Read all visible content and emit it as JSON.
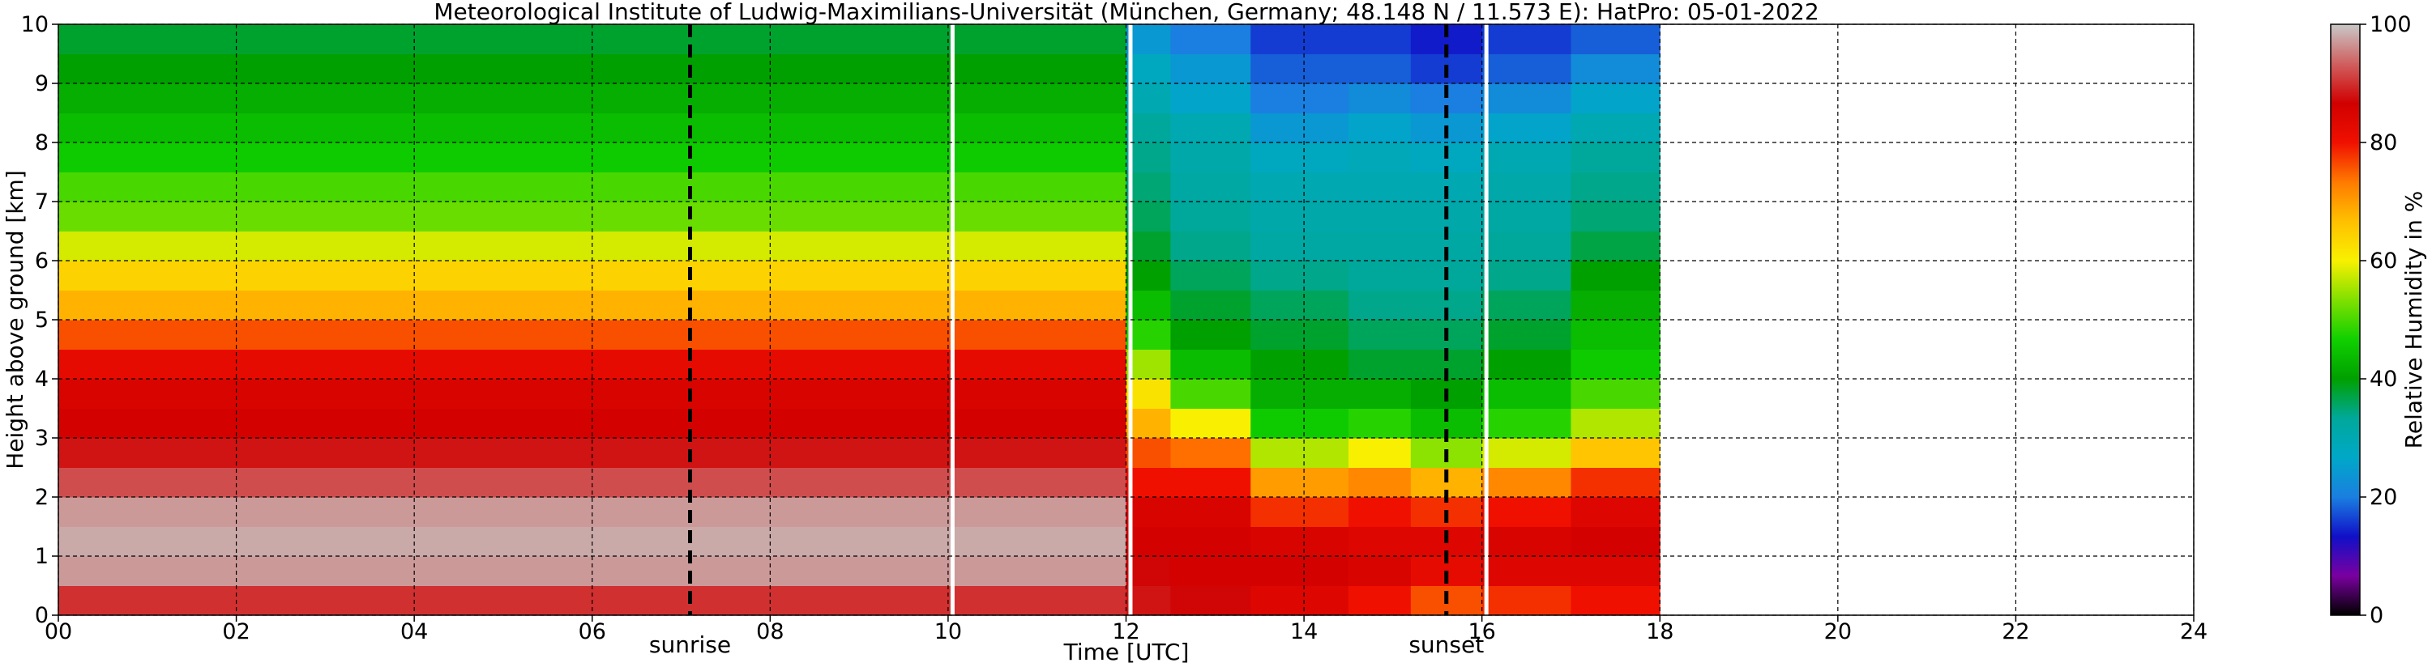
{
  "chart_data": {
    "type": "heatmap",
    "title": "Meteorological Institute of Ludwig-Maximilians-Universität (München, Germany; 48.148 N / 11.573 E):    HatPro: 05-01-2022",
    "xlabel": "Time [UTC]",
    "ylabel": "Height above ground [km]",
    "xlim": [
      0,
      24
    ],
    "ylim": [
      0,
      10
    ],
    "x_ticks": [
      "00",
      "02",
      "04",
      "06",
      "08",
      "10",
      "12",
      "14",
      "16",
      "18",
      "20",
      "22",
      "24"
    ],
    "y_ticks": [
      "0",
      "1",
      "2",
      "3",
      "4",
      "5",
      "6",
      "7",
      "8",
      "9",
      "10"
    ],
    "grid": true,
    "data_end_hour": 18,
    "colorbar": {
      "label": "Relative Humidity in %",
      "range": [
        0,
        100
      ],
      "ticks": [
        "0",
        "20",
        "40",
        "60",
        "80",
        "100"
      ],
      "colors": [
        "#000000",
        "#7a00a0",
        "#1010c8",
        "#1a7fe0",
        "#00a8c8",
        "#00a89a",
        "#00a000",
        "#10d000",
        "#80e000",
        "#f8f000",
        "#ffc000",
        "#ff7a00",
        "#f01000",
        "#d00000",
        "#d06060",
        "#c8c8c8"
      ]
    },
    "annotations": [
      {
        "text": "sunrise",
        "x": 7.1
      },
      {
        "text": "sunset",
        "x": 15.6
      }
    ],
    "data_gaps_hours": [
      10.05,
      12.05,
      16.05
    ],
    "profiles": {
      "heights_km": [
        0.25,
        0.75,
        1.25,
        1.75,
        2.25,
        2.75,
        3.25,
        3.75,
        4.25,
        4.75,
        5.25,
        5.75,
        6.25,
        6.75,
        7.25,
        7.75,
        8.25,
        8.75,
        9.25,
        9.75
      ],
      "segments": [
        {
          "t_start": 0,
          "t_end": 12,
          "rh": [
            90,
            97,
            98,
            97,
            92,
            88,
            86,
            85,
            82,
            76,
            68,
            64,
            58,
            52,
            50,
            46,
            44,
            42,
            40,
            38
          ]
        },
        {
          "t_start": 12,
          "t_end": 12.5,
          "rh": [
            88,
            87,
            86,
            85,
            80,
            76,
            68,
            62,
            55,
            48,
            44,
            40,
            38,
            36,
            35,
            34,
            33,
            30,
            28,
            24
          ]
        },
        {
          "t_start": 12.5,
          "t_end": 13.4,
          "rh": [
            87,
            86,
            86,
            85,
            80,
            74,
            60,
            50,
            44,
            40,
            38,
            36,
            34,
            33,
            32,
            31,
            30,
            26,
            24,
            20
          ]
        },
        {
          "t_start": 13.4,
          "t_end": 14.5,
          "rh": [
            84,
            86,
            85,
            78,
            70,
            56,
            46,
            42,
            40,
            38,
            36,
            34,
            32,
            31,
            30,
            28,
            24,
            20,
            18,
            16
          ]
        },
        {
          "t_start": 14.5,
          "t_end": 15.2,
          "rh": [
            80,
            85,
            84,
            80,
            72,
            60,
            48,
            42,
            38,
            36,
            34,
            33,
            32,
            31,
            30,
            29,
            26,
            22,
            18,
            16
          ]
        },
        {
          "t_start": 15.2,
          "t_end": 16.0,
          "rh": [
            76,
            82,
            84,
            78,
            68,
            54,
            44,
            40,
            38,
            36,
            34,
            33,
            32,
            31,
            30,
            28,
            24,
            20,
            16,
            14
          ]
        },
        {
          "t_start": 16.0,
          "t_end": 17.0,
          "rh": [
            78,
            84,
            85,
            80,
            72,
            58,
            48,
            44,
            40,
            38,
            36,
            34,
            33,
            32,
            31,
            30,
            26,
            22,
            18,
            16
          ]
        },
        {
          "t_start": 17.0,
          "t_end": 18.0,
          "rh": [
            80,
            84,
            86,
            84,
            78,
            66,
            56,
            50,
            46,
            44,
            42,
            40,
            37,
            35,
            34,
            33,
            30,
            26,
            22,
            18
          ]
        }
      ]
    }
  }
}
